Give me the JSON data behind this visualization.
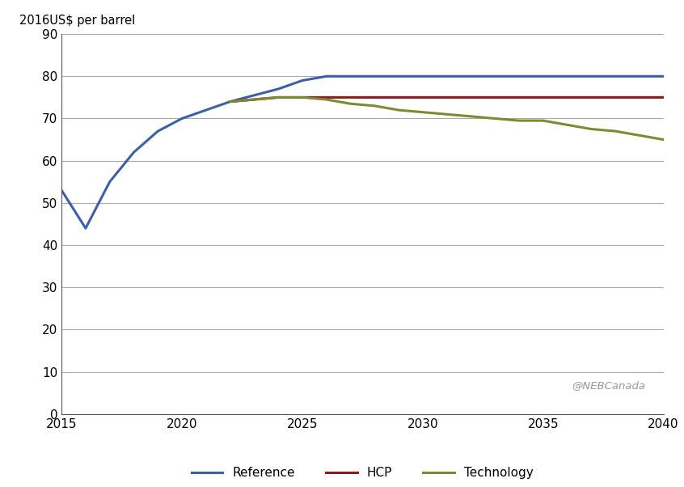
{
  "reference": {
    "x": [
      2015,
      2016,
      2017,
      2018,
      2019,
      2020,
      2021,
      2022,
      2023,
      2024,
      2025,
      2026,
      2027,
      2028,
      2029,
      2030,
      2031,
      2032,
      2033,
      2034,
      2035,
      2036,
      2037,
      2038,
      2039,
      2040
    ],
    "y": [
      53,
      44,
      55,
      62,
      67,
      70,
      72,
      74,
      75.5,
      77,
      79,
      80,
      80,
      80,
      80,
      80,
      80,
      80,
      80,
      80,
      80,
      80,
      80,
      80,
      80,
      80
    ],
    "color": "#3c5fa8",
    "label": "Reference",
    "linewidth": 2.2
  },
  "hcp": {
    "x": [
      2022,
      2023,
      2024,
      2025,
      2026,
      2027,
      2028,
      2029,
      2030,
      2031,
      2032,
      2033,
      2034,
      2035,
      2036,
      2037,
      2038,
      2039,
      2040
    ],
    "y": [
      74,
      74.5,
      75,
      75,
      75,
      75,
      75,
      75,
      75,
      75,
      75,
      75,
      75,
      75,
      75,
      75,
      75,
      75,
      75
    ],
    "color": "#8b1a1a",
    "label": "HCP",
    "linewidth": 2.2
  },
  "technology": {
    "x": [
      2022,
      2023,
      2024,
      2025,
      2026,
      2027,
      2028,
      2029,
      2030,
      2031,
      2032,
      2033,
      2034,
      2035,
      2036,
      2037,
      2038,
      2039,
      2040
    ],
    "y": [
      74,
      74.5,
      75,
      75,
      74.5,
      73.5,
      73,
      72,
      71.5,
      71,
      70.5,
      70,
      69.5,
      69.5,
      68.5,
      67.5,
      67,
      66,
      65
    ],
    "color": "#7a8c2e",
    "label": "Technology",
    "linewidth": 2.2
  },
  "ylabel": "2016US$ per barrel",
  "ylim": [
    0,
    90
  ],
  "xlim": [
    2015,
    2040
  ],
  "yticks": [
    0,
    10,
    20,
    30,
    40,
    50,
    60,
    70,
    80,
    90
  ],
  "xticks": [
    2015,
    2020,
    2025,
    2030,
    2035,
    2040
  ],
  "watermark": "@NEBCanada",
  "background_color": "#ffffff",
  "grid_color": "#aaaaaa"
}
